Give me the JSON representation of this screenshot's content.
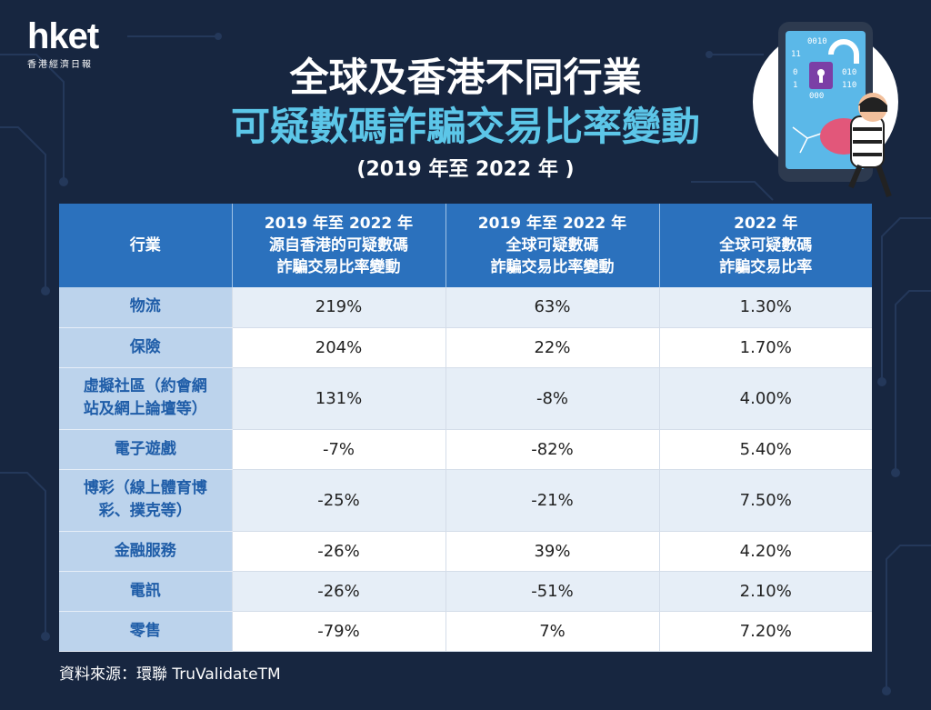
{
  "brand": {
    "logo": "hket",
    "logo_sub": "香港經濟日報"
  },
  "titles": {
    "line1": "全球及香港不同行業",
    "line2": "可疑數碼詐騙交易比率變動",
    "line3": "(2019 年至 2022 年 )"
  },
  "illustration": {
    "binary_rows": [
      "0010",
      "11",
      "0",
      "1",
      "010",
      "110",
      "000"
    ],
    "icons": [
      "smartphone-icon",
      "padlock-icon",
      "thief-icon"
    ]
  },
  "colors": {
    "background": "#172640",
    "header": "#2b71bd",
    "accent": "#5cc6e8",
    "industry_cell": "#bcd3ec",
    "industry_text": "#1f5da8"
  },
  "chart_data": {
    "type": "table",
    "columns": [
      [
        "行業"
      ],
      [
        "2019 年至 2022 年",
        "源自香港的可疑數碼",
        "詐騙交易比率變動"
      ],
      [
        "2019 年至 2022 年",
        "全球可疑數碼",
        "詐騙交易比率變動"
      ],
      [
        "2022 年",
        "全球可疑數碼",
        "詐騙交易比率"
      ]
    ],
    "rows": [
      {
        "industry": [
          "物流"
        ],
        "hk_change": "219%",
        "global_change": "63%",
        "global_rate_2022": "1.30%"
      },
      {
        "industry": [
          "保險"
        ],
        "hk_change": "204%",
        "global_change": "22%",
        "global_rate_2022": "1.70%"
      },
      {
        "industry": [
          "虛擬社區（約會網",
          "站及網上論壇等）"
        ],
        "hk_change": "131%",
        "global_change": "-8%",
        "global_rate_2022": "4.00%"
      },
      {
        "industry": [
          "電子遊戲"
        ],
        "hk_change": "-7%",
        "global_change": "-82%",
        "global_rate_2022": "5.40%"
      },
      {
        "industry": [
          "博彩（線上體育博",
          "彩、撲克等）"
        ],
        "hk_change": "-25%",
        "global_change": "-21%",
        "global_rate_2022": "7.50%"
      },
      {
        "industry": [
          "金融服務"
        ],
        "hk_change": "-26%",
        "global_change": "39%",
        "global_rate_2022": "4.20%"
      },
      {
        "industry": [
          "電訊"
        ],
        "hk_change": "-26%",
        "global_change": "-51%",
        "global_rate_2022": "2.10%"
      },
      {
        "industry": [
          "零售"
        ],
        "hk_change": "-79%",
        "global_change": "7%",
        "global_rate_2022": "7.20%"
      }
    ]
  },
  "source": "資料來源：環聯 TruValidateTM"
}
